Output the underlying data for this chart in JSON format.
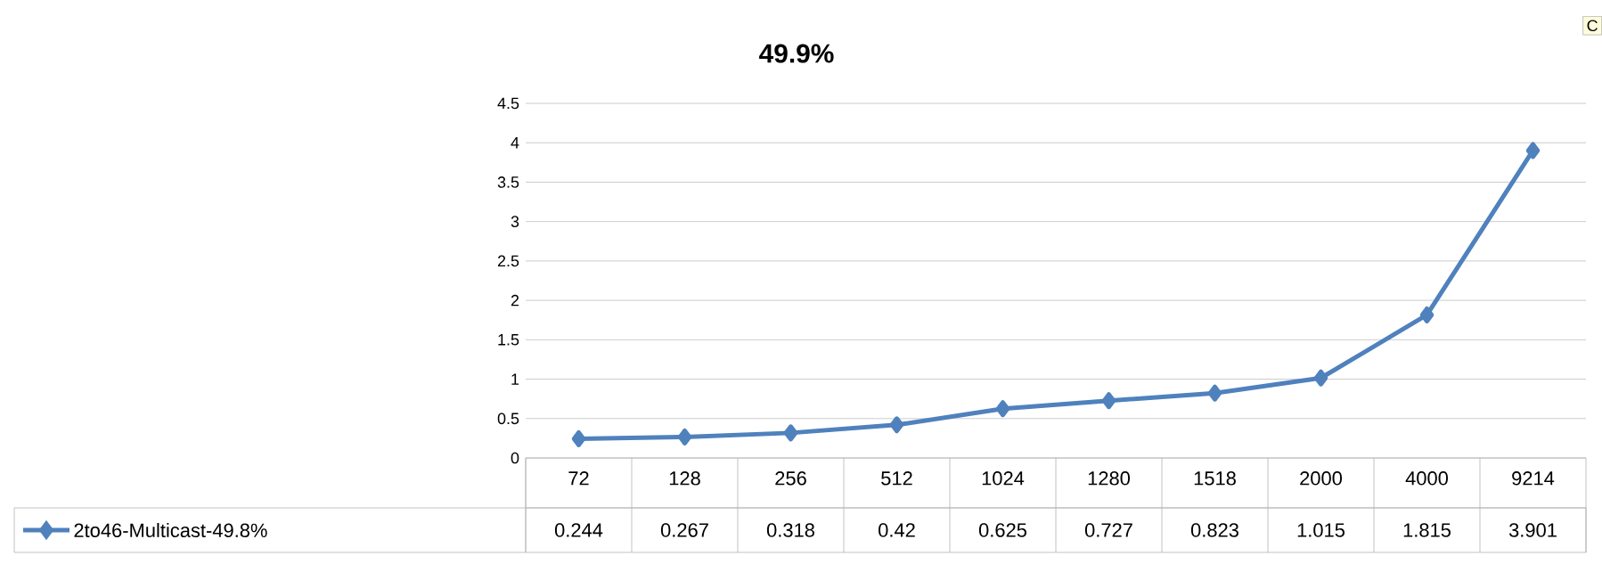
{
  "chart_data": {
    "type": "line",
    "title": "49.9%",
    "categories": [
      "72",
      "128",
      "256",
      "512",
      "1024",
      "1280",
      "1518",
      "2000",
      "4000",
      "9214"
    ],
    "series": [
      {
        "name": "2to46-Multicast-49.8%",
        "color": "#4f81bd",
        "values": [
          0.244,
          0.267,
          0.318,
          0.42,
          0.625,
          0.727,
          0.823,
          1.015,
          1.815,
          3.901
        ]
      }
    ],
    "ylim": [
      0,
      4.5
    ],
    "yticks": [
      0,
      0.5,
      1,
      1.5,
      2,
      2.5,
      3,
      3.5,
      4,
      4.5
    ],
    "grid": "y",
    "marker": "diamond",
    "line_style": "solid",
    "data_labels": true,
    "legend": "bottom left",
    "annotations": [
      "C"
    ]
  }
}
